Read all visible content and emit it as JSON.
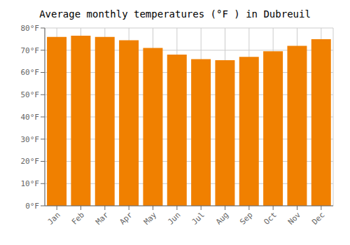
{
  "chart_data": {
    "type": "bar",
    "title": "Average monthly temperatures (°F ) in Dubreuil",
    "categories": [
      "Jan",
      "Feb",
      "Mar",
      "Apr",
      "May",
      "Jun",
      "Jul",
      "Aug",
      "Sep",
      "Oct",
      "Nov",
      "Dec"
    ],
    "values": [
      76,
      76.5,
      76,
      74.5,
      71,
      68,
      66,
      65.5,
      67,
      69.5,
      72,
      75
    ],
    "color": "#F08000",
    "ylim": [
      0,
      80
    ],
    "yticks": [
      {
        "value": 0,
        "label": "0°F"
      },
      {
        "value": 10,
        "label": "10°F"
      },
      {
        "value": 20,
        "label": "20°F"
      },
      {
        "value": 30,
        "label": "30°F"
      },
      {
        "value": 40,
        "label": "40°F"
      },
      {
        "value": 50,
        "label": "50°F"
      },
      {
        "value": 60,
        "label": "60°F"
      },
      {
        "value": 70,
        "label": "70°F"
      },
      {
        "value": 80,
        "label": "80°F"
      }
    ],
    "grid": true
  }
}
